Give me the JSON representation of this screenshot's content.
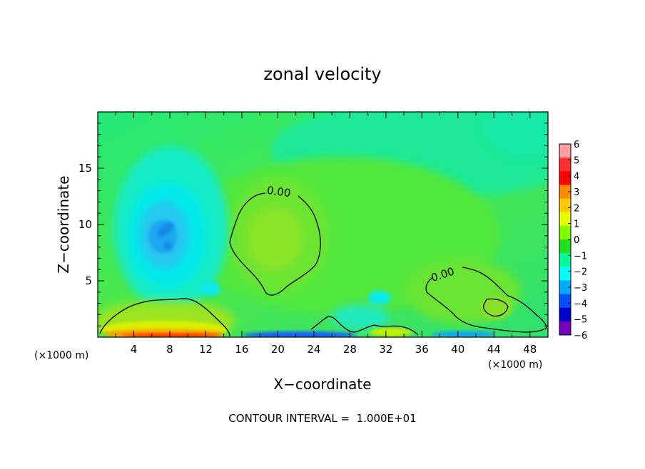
{
  "chart_data": {
    "type": "heatmap",
    "title": "zonal velocity",
    "xlabel": "X−coordinate",
    "ylabel": "Z−coordinate",
    "x_unit": "(×1000 m)",
    "z_unit": "(×1000 m)",
    "xlim": [
      0,
      50
    ],
    "ylim": [
      0,
      20
    ],
    "x_ticks": [
      4,
      8,
      12,
      16,
      20,
      24,
      28,
      32,
      36,
      40,
      44,
      48
    ],
    "y_ticks": [
      5,
      10,
      15
    ],
    "colorbar": {
      "levels": [
        6,
        5,
        4,
        3,
        2,
        1,
        0,
        -1,
        -2,
        -3,
        -4,
        -5,
        -6
      ],
      "labels": [
        "6",
        "5",
        "4",
        "3",
        "2",
        "1",
        "0",
        "−1",
        "−2",
        "−3",
        "−4",
        "−5",
        "−6"
      ],
      "colors": [
        "#ffa0a0",
        "#ff3030",
        "#ff0000",
        "#ff8c00",
        "#ffc800",
        "#e6ff00",
        "#80ff00",
        "#20e020",
        "#00ff9a",
        "#00ffff",
        "#00aaff",
        "#0050ff",
        "#0000d0",
        "#7a00c0"
      ]
    },
    "contour_labels": [
      "0.00",
      "0.00"
    ],
    "footer": "CONTOUR INTERVAL =  1.000E+01"
  }
}
